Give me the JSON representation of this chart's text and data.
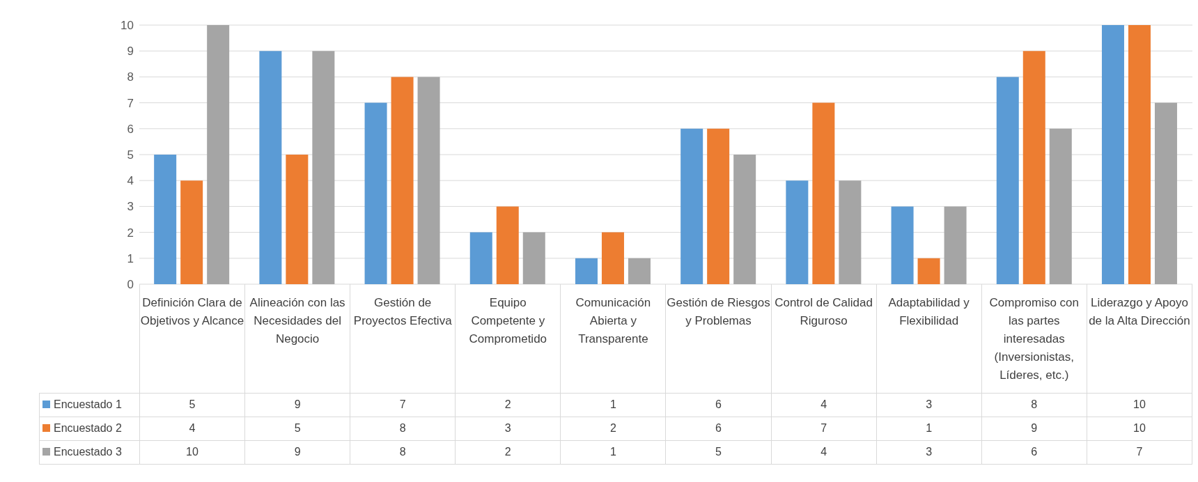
{
  "chart_data": {
    "type": "bar",
    "categories": [
      "Definición Clara de Objetivos y Alcance",
      "Alineación con las Necesidades del Negocio",
      "Gestión de Proyectos Efectiva",
      "Equipo Competente y Comprometido",
      "Comunicación Abierta y Transparente",
      "Gestión de Riesgos y Problemas",
      "Control de Calidad Riguroso",
      "Adaptabilidad y Flexibilidad",
      "Compromiso con las partes interesadas (Inversionistas, Líderes, etc.)",
      "Liderazgo y Apoyo de la Alta Dirección"
    ],
    "series": [
      {
        "name": "Encuestado 1",
        "color": "#5b9bd5",
        "values": [
          5,
          9,
          7,
          2,
          1,
          6,
          4,
          3,
          8,
          10
        ]
      },
      {
        "name": "Encuestado 2",
        "color": "#ed7d31",
        "values": [
          4,
          5,
          8,
          3,
          2,
          6,
          7,
          1,
          9,
          10
        ]
      },
      {
        "name": "Encuestado 3",
        "color": "#a5a5a5",
        "values": [
          10,
          9,
          8,
          2,
          1,
          5,
          4,
          3,
          6,
          7
        ]
      }
    ],
    "ylim": [
      0,
      10
    ],
    "yticks": [
      0,
      1,
      2,
      3,
      4,
      5,
      6,
      7,
      8,
      9,
      10
    ],
    "grid": "y",
    "legend": "bottom",
    "data_labels": true
  }
}
